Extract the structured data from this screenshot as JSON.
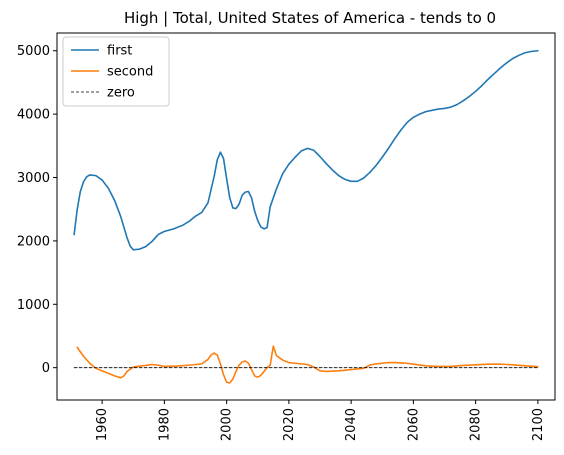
{
  "chart_data": {
    "type": "line",
    "title": "High | Total, United States of America  - tends to 0",
    "xlabel": "",
    "ylabel": "",
    "xlim": [
      1945.5,
      2105.5
    ],
    "ylim": [
      -510,
      5280
    ],
    "x_ticks": [
      1960,
      1980,
      2000,
      2020,
      2040,
      2060,
      2080,
      2100
    ],
    "y_ticks": [
      0,
      1000,
      2000,
      3000,
      4000,
      5000
    ],
    "grid": false,
    "legend_position": "top-left",
    "series": [
      {
        "name": "first",
        "color": "#1f77b4",
        "style": "solid",
        "points": [
          [
            1951,
            2100
          ],
          [
            1952,
            2500
          ],
          [
            1953,
            2780
          ],
          [
            1954,
            2930
          ],
          [
            1955,
            3010
          ],
          [
            1956,
            3040
          ],
          [
            1958,
            3030
          ],
          [
            1960,
            2960
          ],
          [
            1962,
            2830
          ],
          [
            1964,
            2640
          ],
          [
            1966,
            2380
          ],
          [
            1968,
            2050
          ],
          [
            1969,
            1920
          ],
          [
            1970,
            1860
          ],
          [
            1972,
            1870
          ],
          [
            1974,
            1910
          ],
          [
            1976,
            1990
          ],
          [
            1978,
            2100
          ],
          [
            1980,
            2150
          ],
          [
            1983,
            2190
          ],
          [
            1986,
            2250
          ],
          [
            1988,
            2310
          ],
          [
            1990,
            2390
          ],
          [
            1992,
            2450
          ],
          [
            1994,
            2600
          ],
          [
            1996,
            3020
          ],
          [
            1997,
            3280
          ],
          [
            1998,
            3400
          ],
          [
            1999,
            3300
          ],
          [
            2000,
            2980
          ],
          [
            2001,
            2680
          ],
          [
            2002,
            2520
          ],
          [
            2003,
            2510
          ],
          [
            2004,
            2580
          ],
          [
            2005,
            2720
          ],
          [
            2006,
            2770
          ],
          [
            2007,
            2780
          ],
          [
            2008,
            2680
          ],
          [
            2009,
            2470
          ],
          [
            2010,
            2320
          ],
          [
            2011,
            2220
          ],
          [
            2012,
            2190
          ],
          [
            2013,
            2210
          ],
          [
            2014,
            2540
          ],
          [
            2016,
            2820
          ],
          [
            2018,
            3060
          ],
          [
            2020,
            3210
          ],
          [
            2022,
            3320
          ],
          [
            2024,
            3420
          ],
          [
            2026,
            3460
          ],
          [
            2028,
            3430
          ],
          [
            2030,
            3330
          ],
          [
            2032,
            3220
          ],
          [
            2034,
            3120
          ],
          [
            2036,
            3030
          ],
          [
            2038,
            2970
          ],
          [
            2040,
            2940
          ],
          [
            2042,
            2940
          ],
          [
            2044,
            2990
          ],
          [
            2046,
            3080
          ],
          [
            2048,
            3190
          ],
          [
            2050,
            3320
          ],
          [
            2052,
            3460
          ],
          [
            2054,
            3610
          ],
          [
            2056,
            3750
          ],
          [
            2058,
            3870
          ],
          [
            2060,
            3950
          ],
          [
            2062,
            4000
          ],
          [
            2064,
            4040
          ],
          [
            2066,
            4060
          ],
          [
            2068,
            4080
          ],
          [
            2070,
            4090
          ],
          [
            2072,
            4110
          ],
          [
            2074,
            4150
          ],
          [
            2076,
            4210
          ],
          [
            2078,
            4280
          ],
          [
            2080,
            4360
          ],
          [
            2082,
            4450
          ],
          [
            2084,
            4550
          ],
          [
            2086,
            4640
          ],
          [
            2088,
            4730
          ],
          [
            2090,
            4810
          ],
          [
            2092,
            4880
          ],
          [
            2094,
            4930
          ],
          [
            2096,
            4970
          ],
          [
            2098,
            4990
          ],
          [
            2100,
            5000
          ]
        ]
      },
      {
        "name": "second",
        "color": "#ff7f0e",
        "style": "solid",
        "points": [
          [
            1952,
            320
          ],
          [
            1954,
            180
          ],
          [
            1956,
            70
          ],
          [
            1958,
            -10
          ],
          [
            1960,
            -50
          ],
          [
            1962,
            -90
          ],
          [
            1964,
            -130
          ],
          [
            1966,
            -160
          ],
          [
            1967,
            -130
          ],
          [
            1968,
            -60
          ],
          [
            1970,
            10
          ],
          [
            1972,
            25
          ],
          [
            1974,
            35
          ],
          [
            1976,
            50
          ],
          [
            1978,
            40
          ],
          [
            1980,
            20
          ],
          [
            1984,
            25
          ],
          [
            1988,
            40
          ],
          [
            1992,
            60
          ],
          [
            1994,
            130
          ],
          [
            1995,
            200
          ],
          [
            1996,
            230
          ],
          [
            1997,
            200
          ],
          [
            1998,
            60
          ],
          [
            1999,
            -110
          ],
          [
            2000,
            -230
          ],
          [
            2001,
            -240
          ],
          [
            2002,
            -180
          ],
          [
            2003,
            -60
          ],
          [
            2004,
            40
          ],
          [
            2005,
            90
          ],
          [
            2006,
            105
          ],
          [
            2007,
            70
          ],
          [
            2008,
            -30
          ],
          [
            2009,
            -130
          ],
          [
            2010,
            -150
          ],
          [
            2011,
            -120
          ],
          [
            2012,
            -60
          ],
          [
            2013,
            0
          ],
          [
            2014,
            40
          ],
          [
            2015,
            340
          ],
          [
            2016,
            190
          ],
          [
            2018,
            120
          ],
          [
            2020,
            80
          ],
          [
            2022,
            70
          ],
          [
            2024,
            60
          ],
          [
            2026,
            50
          ],
          [
            2028,
            10
          ],
          [
            2030,
            -50
          ],
          [
            2032,
            -60
          ],
          [
            2036,
            -50
          ],
          [
            2040,
            -30
          ],
          [
            2044,
            -10
          ],
          [
            2046,
            40
          ],
          [
            2048,
            60
          ],
          [
            2050,
            70
          ],
          [
            2052,
            80
          ],
          [
            2054,
            80
          ],
          [
            2056,
            75
          ],
          [
            2058,
            70
          ],
          [
            2060,
            55
          ],
          [
            2064,
            30
          ],
          [
            2068,
            20
          ],
          [
            2072,
            20
          ],
          [
            2076,
            35
          ],
          [
            2080,
            45
          ],
          [
            2084,
            55
          ],
          [
            2088,
            55
          ],
          [
            2092,
            45
          ],
          [
            2096,
            30
          ],
          [
            2100,
            15
          ]
        ]
      },
      {
        "name": "zero",
        "color": "#000000",
        "style": "dashed",
        "points": [
          [
            1951,
            0
          ],
          [
            2100,
            0
          ]
        ]
      }
    ]
  }
}
